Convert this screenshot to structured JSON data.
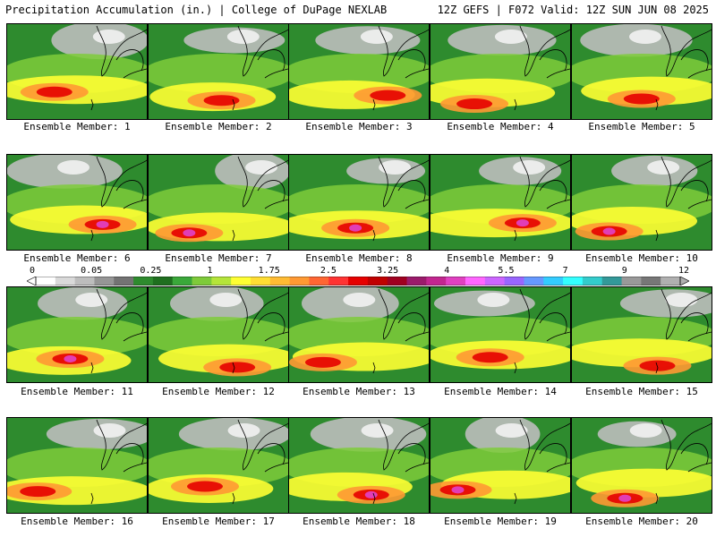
{
  "header": {
    "left": "Precipitation Accumulation (in.) | College of DuPage NEXLAB",
    "right": "12Z GEFS | F072 Valid: 12Z SUN JUN 08 2025"
  },
  "legend": {
    "ticks": [
      "0",
      "0.05",
      "0.25",
      "1",
      "1.75",
      "2.5",
      "3.25",
      "4",
      "5.5",
      "7",
      "9",
      "12"
    ],
    "colors": [
      "#ffffff",
      "#d9d9d9",
      "#bdbdbd",
      "#969696",
      "#737373",
      "#2e8b2e",
      "#1f6f1f",
      "#3aa83a",
      "#7ecb3a",
      "#b5e53a",
      "#ffff33",
      "#ffdd33",
      "#ffbb33",
      "#ff9933",
      "#ff6633",
      "#ff3333",
      "#e60000",
      "#c00000",
      "#a00020",
      "#9b1b6b",
      "#c2268f",
      "#e040c0",
      "#ff66ff",
      "#cc66ff",
      "#9966ff",
      "#6699ff",
      "#33ccff",
      "#33ffff",
      "#33cccc",
      "#339999",
      "#999999",
      "#777777",
      "#b0b0b0"
    ]
  },
  "members": [
    {
      "label": "Ensemble Member: 1"
    },
    {
      "label": "Ensemble Member: 2"
    },
    {
      "label": "Ensemble Member: 3"
    },
    {
      "label": "Ensemble Member: 4"
    },
    {
      "label": "Ensemble Member: 5"
    },
    {
      "label": "Ensemble Member: 6"
    },
    {
      "label": "Ensemble Member: 7"
    },
    {
      "label": "Ensemble Member: 8"
    },
    {
      "label": "Ensemble Member: 9"
    },
    {
      "label": "Ensemble Member: 10"
    },
    {
      "label": "Ensemble Member: 11"
    },
    {
      "label": "Ensemble Member: 12"
    },
    {
      "label": "Ensemble Member: 13"
    },
    {
      "label": "Ensemble Member: 14"
    },
    {
      "label": "Ensemble Member: 15"
    },
    {
      "label": "Ensemble Member: 16"
    },
    {
      "label": "Ensemble Member: 17"
    },
    {
      "label": "Ensemble Member: 18"
    },
    {
      "label": "Ensemble Member: 19"
    },
    {
      "label": "Ensemble Member: 20"
    }
  ]
}
